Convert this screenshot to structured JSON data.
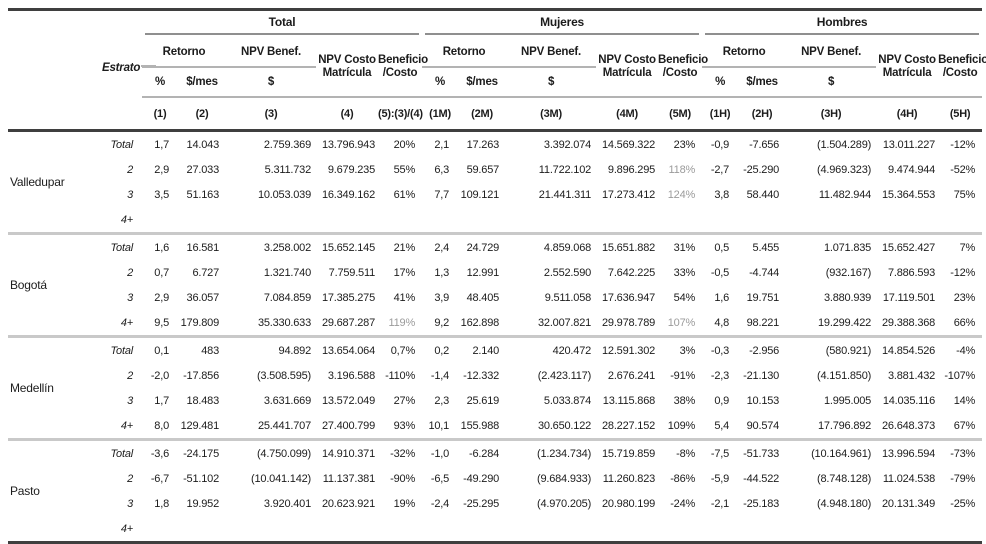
{
  "colors": {
    "text": "#1c1c1c",
    "gray_value": "#9b9b9b",
    "dark_rule": "#3f3f3f",
    "group_rule": "#8f8f8f",
    "light_rule": "#c9c9c9"
  },
  "header": {
    "estrato": "Estrato",
    "groups": [
      {
        "name": "Total",
        "retorno": "Retorno",
        "pct": "%",
        "mes": "$/mes",
        "npv_benef": "NPV Benef.",
        "dollar": "$",
        "npv_costo_l1": "NPV Costo",
        "npv_costo_l2": "Matrícula",
        "bc_l1": "Beneficio",
        "bc_l2": "/Costo",
        "ids": [
          "(1)",
          "(2)",
          "(3)",
          "(4)",
          "(5):(3)/(4)"
        ]
      },
      {
        "name": "Mujeres",
        "retorno": "Retorno",
        "pct": "%",
        "mes": "$/mes",
        "npv_benef": "NPV Benef.",
        "dollar": "$",
        "npv_costo_l1": "NPV Costo",
        "npv_costo_l2": "Matrícula",
        "bc_l1": "Beneficio",
        "bc_l2": "/Costo",
        "ids": [
          "(1M)",
          "(2M)",
          "(3M)",
          "(4M)",
          "(5M)"
        ]
      },
      {
        "name": "Hombres",
        "retorno": "Retorno",
        "pct": "%",
        "mes": "$/mes",
        "npv_benef": "NPV Benef.",
        "dollar": "$",
        "npv_costo_l1": "NPV Costo",
        "npv_costo_l2": "Matrícula",
        "bc_l1": "Beneficio",
        "bc_l2": "/Costo",
        "ids": [
          "(1H)",
          "(2H)",
          "(3H)",
          "(4H)",
          "(5H)"
        ]
      }
    ]
  },
  "body": {
    "cities": [
      {
        "name": "Valledupar",
        "rows": [
          {
            "estrato": "Total",
            "cells": [
              "1,7",
              "14.043",
              "2.759.369",
              "13.796.943",
              "20%",
              "2,1",
              "17.263",
              "3.392.074",
              "14.569.322",
              "23%",
              "-0,9",
              "-7.656",
              "(1.504.289)",
              "13.011.227",
              "-12%"
            ],
            "gray": []
          },
          {
            "estrato": "2",
            "cells": [
              "2,9",
              "27.033",
              "5.311.732",
              "9.679.235",
              "55%",
              "6,3",
              "59.657",
              "11.722.102",
              "9.896.295",
              "118%",
              "-2,7",
              "-25.290",
              "(4.969.323)",
              "9.474.944",
              "-52%"
            ],
            "gray": [
              9
            ]
          },
          {
            "estrato": "3",
            "cells": [
              "3,5",
              "51.163",
              "10.053.039",
              "16.349.162",
              "61%",
              "7,7",
              "109.121",
              "21.441.311",
              "17.273.412",
              "124%",
              "3,8",
              "58.440",
              "11.482.944",
              "15.364.553",
              "75%"
            ],
            "gray": [
              9
            ]
          },
          {
            "estrato": "4+",
            "cells": [
              "",
              "",
              "",
              "",
              "",
              "",
              "",
              "",
              "",
              "",
              "",
              "",
              "",
              "",
              ""
            ],
            "gray": []
          }
        ]
      },
      {
        "name": "Bogotá",
        "rows": [
          {
            "estrato": "Total",
            "cells": [
              "1,6",
              "16.581",
              "3.258.002",
              "15.652.145",
              "21%",
              "2,4",
              "24.729",
              "4.859.068",
              "15.651.882",
              "31%",
              "0,5",
              "5.455",
              "1.071.835",
              "15.652.427",
              "7%"
            ],
            "gray": []
          },
          {
            "estrato": "2",
            "cells": [
              "0,7",
              "6.727",
              "1.321.740",
              "7.759.511",
              "17%",
              "1,3",
              "12.991",
              "2.552.590",
              "7.642.225",
              "33%",
              "-0,5",
              "-4.744",
              "(932.167)",
              "7.886.593",
              "-12%"
            ],
            "gray": []
          },
          {
            "estrato": "3",
            "cells": [
              "2,9",
              "36.057",
              "7.084.859",
              "17.385.275",
              "41%",
              "3,9",
              "48.405",
              "9.511.058",
              "17.636.947",
              "54%",
              "1,6",
              "19.751",
              "3.880.939",
              "17.119.501",
              "23%"
            ],
            "gray": []
          },
          {
            "estrato": "4+",
            "cells": [
              "9,5",
              "179.809",
              "35.330.633",
              "29.687.287",
              "119%",
              "9,2",
              "162.898",
              "32.007.821",
              "29.978.789",
              "107%",
              "4,8",
              "98.221",
              "19.299.422",
              "29.388.368",
              "66%"
            ],
            "gray": [
              4,
              9
            ]
          }
        ]
      },
      {
        "name": "Medellín",
        "rows": [
          {
            "estrato": "Total",
            "cells": [
              "0,1",
              "483",
              "94.892",
              "13.654.064",
              "0,7%",
              "0,2",
              "2.140",
              "420.472",
              "12.591.302",
              "3%",
              "-0,3",
              "-2.956",
              "(580.921)",
              "14.854.526",
              "-4%"
            ],
            "gray": []
          },
          {
            "estrato": "2",
            "cells": [
              "-2,0",
              "-17.856",
              "(3.508.595)",
              "3.196.588",
              "-110%",
              "-1,4",
              "-12.332",
              "(2.423.117)",
              "2.676.241",
              "-91%",
              "-2,3",
              "-21.130",
              "(4.151.850)",
              "3.881.432",
              "-107%"
            ],
            "gray": []
          },
          {
            "estrato": "3",
            "cells": [
              "1,7",
              "18.483",
              "3.631.669",
              "13.572.049",
              "27%",
              "2,3",
              "25.619",
              "5.033.874",
              "13.115.868",
              "38%",
              "0,9",
              "10.153",
              "1.995.005",
              "14.035.116",
              "14%"
            ],
            "gray": []
          },
          {
            "estrato": "4+",
            "cells": [
              "8,0",
              "129.481",
              "25.441.707",
              "27.400.799",
              "93%",
              "10,1",
              "155.988",
              "30.650.122",
              "28.227.152",
              "109%",
              "5,4",
              "90.574",
              "17.796.892",
              "26.648.373",
              "67%"
            ],
            "gray": []
          }
        ]
      },
      {
        "name": "Pasto",
        "rows": [
          {
            "estrato": "Total",
            "cells": [
              "-3,6",
              "-24.175",
              "(4.750.099)",
              "14.910.371",
              "-32%",
              "-1,0",
              "-6.284",
              "(1.234.734)",
              "15.719.859",
              "-8%",
              "-7,5",
              "-51.733",
              "(10.164.961)",
              "13.996.594",
              "-73%"
            ],
            "gray": []
          },
          {
            "estrato": "2",
            "cells": [
              "-6,7",
              "-51.102",
              "(10.041.142)",
              "11.137.381",
              "-90%",
              "-6,5",
              "-49.290",
              "(9.684.933)",
              "11.260.823",
              "-86%",
              "-5,9",
              "-44.522",
              "(8.748.128)",
              "11.024.538",
              "-79%"
            ],
            "gray": []
          },
          {
            "estrato": "3",
            "cells": [
              "1,8",
              "19.952",
              "3.920.401",
              "20.623.921",
              "19%",
              "-2,4",
              "-25.295",
              "(4.970.205)",
              "20.980.199",
              "-24%",
              "-2,1",
              "-25.183",
              "(4.948.180)",
              "20.131.349",
              "-25%"
            ],
            "gray": []
          },
          {
            "estrato": "4+",
            "cells": [
              "",
              "",
              "",
              "",
              "",
              "",
              "",
              "",
              "",
              "",
              "",
              "",
              "",
              "",
              ""
            ],
            "gray": []
          }
        ]
      }
    ]
  }
}
